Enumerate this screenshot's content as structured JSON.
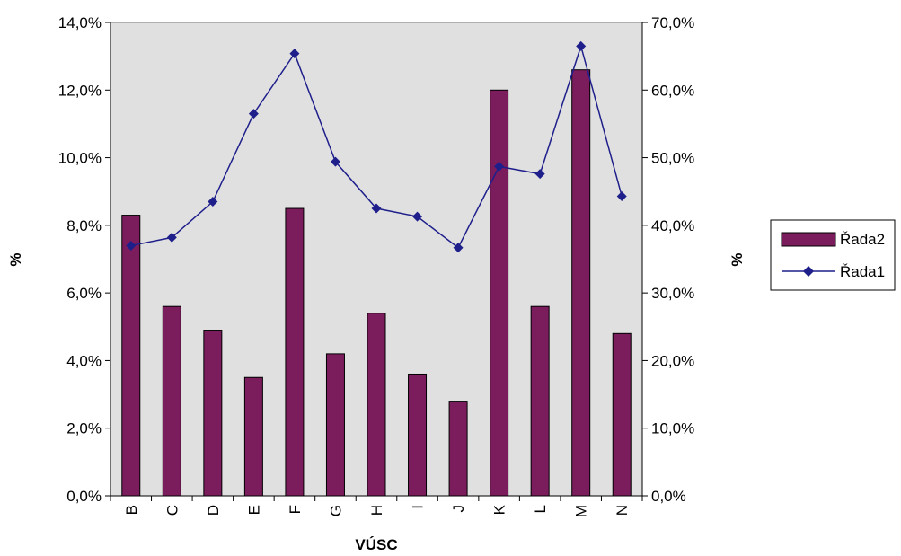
{
  "chart_data": {
    "type": "bar+line",
    "categories": [
      "B",
      "C",
      "D",
      "E",
      "F",
      "G",
      "H",
      "I",
      "J",
      "K",
      "L",
      "M",
      "N"
    ],
    "series": [
      {
        "name": "Řada2",
        "type": "bar",
        "axis": "left",
        "color": "#7B1C5C",
        "values": [
          8.3,
          5.6,
          4.9,
          3.5,
          8.5,
          4.2,
          5.4,
          3.6,
          2.8,
          12.0,
          5.6,
          12.6,
          4.8
        ]
      },
      {
        "name": "Řada1",
        "type": "line",
        "axis": "right",
        "color": "#1F1F8C",
        "marker": "diamond",
        "values": [
          37.0,
          38.2,
          43.5,
          56.5,
          65.4,
          49.4,
          42.5,
          41.3,
          36.7,
          48.7,
          47.6,
          66.5,
          44.3
        ]
      }
    ],
    "y_left": {
      "label": "%",
      "ylim": [
        0,
        14
      ],
      "ticks": [
        "0,0%",
        "2,0%",
        "4,0%",
        "6,0%",
        "8,0%",
        "10,0%",
        "12,0%",
        "14,0%"
      ]
    },
    "y_right": {
      "label": "%",
      "ylim": [
        0,
        70
      ],
      "ticks": [
        "0,0%",
        "10,0%",
        "20,0%",
        "30,0%",
        "40,0%",
        "50,0%",
        "60,0%",
        "70,0%"
      ]
    },
    "xlabel": "VÚSC",
    "plot_background": "#E0E0E0",
    "grid": false,
    "legend": {
      "position": "right",
      "entries": [
        "Řada2",
        "Řada1"
      ]
    }
  }
}
